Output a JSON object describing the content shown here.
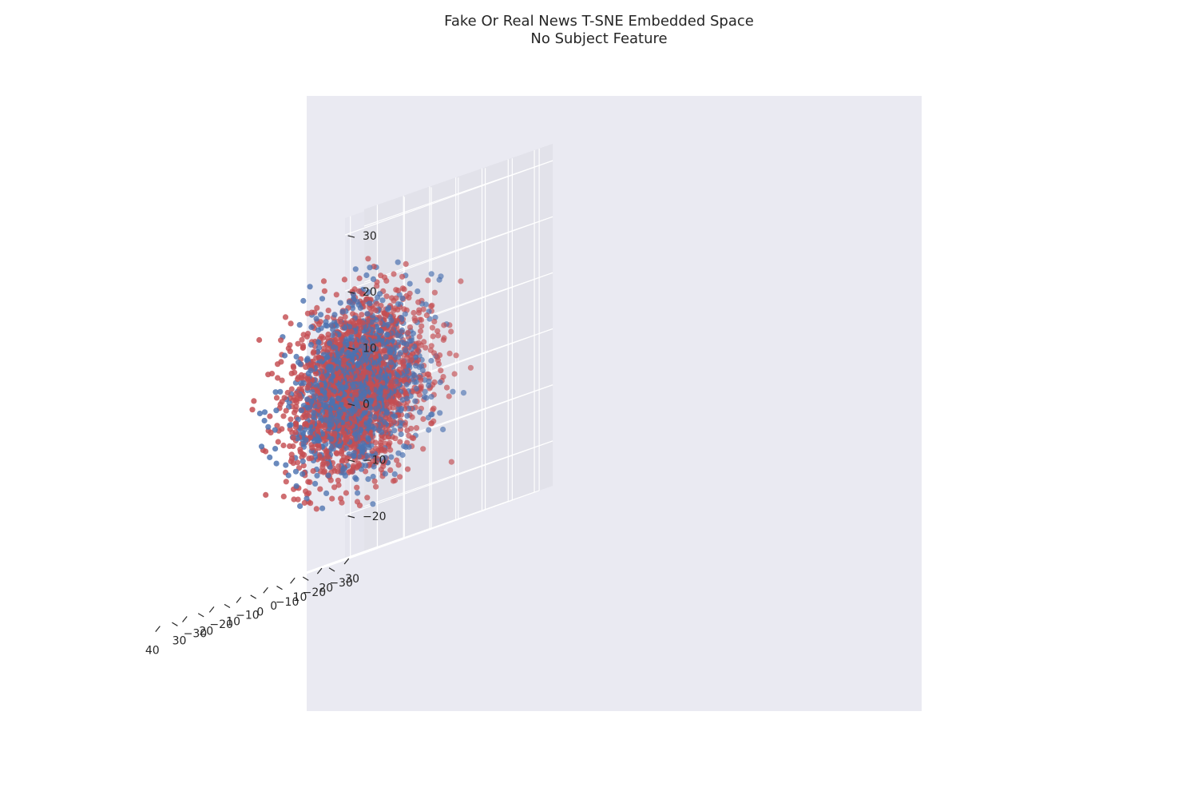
{
  "figure": {
    "title_line1": "Fake Or Real News T-SNE Embedded Space",
    "title_line2": "No Subject Feature"
  },
  "colors": {
    "axes_background": "#eaeaf2",
    "pane_left": "#e5e5ee",
    "pane_right": "#e2e2ea",
    "pane_floor": "#e8e8ef",
    "grid": "#ffffff",
    "real": "#4c72b0",
    "fake": "#c44e52"
  },
  "chart_data": {
    "type": "scatter",
    "projection": "3d",
    "title": "Fake Or Real News T-SNE Embedded Space\nNo Subject Feature",
    "xlabel": "",
    "ylabel": "",
    "zlabel": "",
    "grid": true,
    "legend": "none",
    "xlim": [
      -35,
      42
    ],
    "ylim": [
      -35,
      37
    ],
    "zlim": [
      -28,
      33
    ],
    "x_ticks": [
      -30,
      -20,
      -10,
      0,
      10,
      20,
      30,
      40
    ],
    "y_ticks": [
      -30,
      -20,
      -10,
      0,
      10,
      20,
      30
    ],
    "z_ticks": [
      -20,
      -10,
      0,
      10,
      20,
      30
    ],
    "x_tick_labels": [
      "−30",
      "−20",
      "−10",
      "0",
      "10",
      "20",
      "30",
      "40"
    ],
    "y_tick_labels": [
      "−30",
      "−20",
      "−10",
      "0",
      "10",
      "20",
      "30"
    ],
    "z_tick_labels": [
      "−20",
      "−10",
      "0",
      "10",
      "20",
      "30"
    ],
    "series": [
      {
        "color": "#4c72b0",
        "approx_count": 1100,
        "x_range": [
          -30,
          38
        ],
        "y_range": [
          -30,
          34
        ],
        "z_range": [
          -25,
          30
        ]
      },
      {
        "color": "#c44e52",
        "approx_count": 2000,
        "x_range": [
          -30,
          40
        ],
        "y_range": [
          -32,
          36
        ],
        "z_range": [
          -25,
          30
        ]
      }
    ]
  }
}
